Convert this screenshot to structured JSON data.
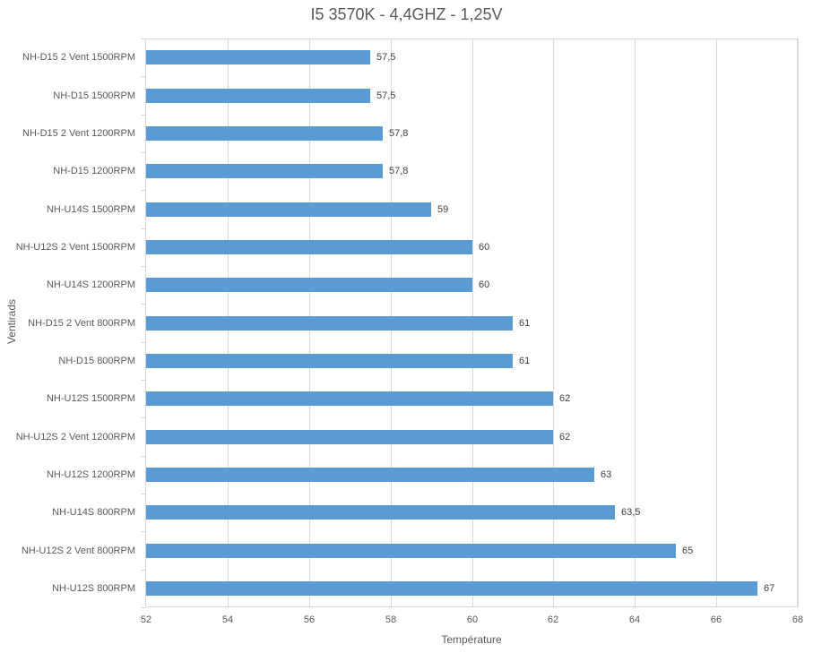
{
  "chart_data": {
    "type": "bar",
    "orientation": "horizontal",
    "title": "I5 3570K - 4,4GHZ - 1,25V",
    "xlabel": "Température",
    "ylabel": "Ventirads",
    "xlim": [
      52,
      68
    ],
    "x_ticks": [
      "52",
      "54",
      "56",
      "58",
      "60",
      "62",
      "64",
      "66",
      "68"
    ],
    "grid": "vertical",
    "legend": "none",
    "bar_color": "#5b9bd5",
    "categories": [
      "NH-D15 2 Vent 1500RPM",
      "NH-D15 1500RPM",
      "NH-D15 2 Vent 1200RPM",
      "NH-D15 1200RPM",
      "NH-U14S 1500RPM",
      "NH-U12S 2 Vent 1500RPM",
      "NH-U14S 1200RPM",
      "NH-D15 2 Vent 800RPM",
      "NH-D15 800RPM",
      "NH-U12S 1500RPM",
      "NH-U12S 2 Vent 1200RPM",
      "NH-U12S 1200RPM",
      "NH-U14S 800RPM",
      "NH-U12S 2 Vent 800RPM",
      "NH-U12S 800RPM"
    ],
    "values": [
      57.5,
      57.5,
      57.8,
      57.8,
      59,
      60,
      60,
      61,
      61,
      62,
      62,
      63,
      63.5,
      65,
      67
    ],
    "value_labels": [
      "57,5",
      "57,5",
      "57,8",
      "57,8",
      "59",
      "60",
      "60",
      "61",
      "61",
      "62",
      "62",
      "63",
      "63,5",
      "65",
      "67"
    ]
  }
}
